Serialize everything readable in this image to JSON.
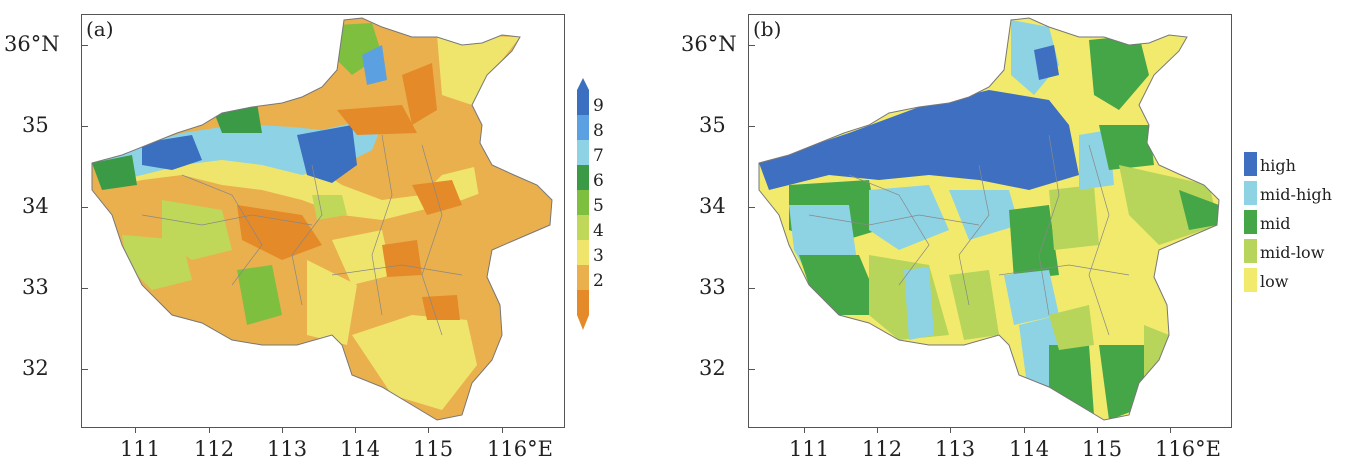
{
  "panels": [
    {
      "label": "(a)"
    },
    {
      "label": "(b)"
    }
  ],
  "axes": {
    "lat_labels": [
      "36°N",
      "35",
      "34",
      "33",
      "32"
    ],
    "lon_labels": [
      "111",
      "112",
      "113",
      "114",
      "115",
      "116°E"
    ]
  },
  "colorbar": {
    "labels": [
      "9",
      "8",
      "7",
      "6",
      "5",
      "4",
      "3",
      "2"
    ],
    "colors": [
      "#3b6fc0",
      "#5ba0e0",
      "#8ed3e5",
      "#3b9a45",
      "#7fbf3f",
      "#bfd85a",
      "#f0e56c",
      "#e9b04d",
      "#e48a28"
    ]
  },
  "legend_b": [
    {
      "label": "high",
      "color": "#3f6fc1"
    },
    {
      "label": "mid-high",
      "color": "#8dd3e3"
    },
    {
      "label": "mid",
      "color": "#45a647"
    },
    {
      "label": "mid-low",
      "color": "#b6d55a"
    },
    {
      "label": "low",
      "color": "#f2ea6d"
    }
  ]
}
